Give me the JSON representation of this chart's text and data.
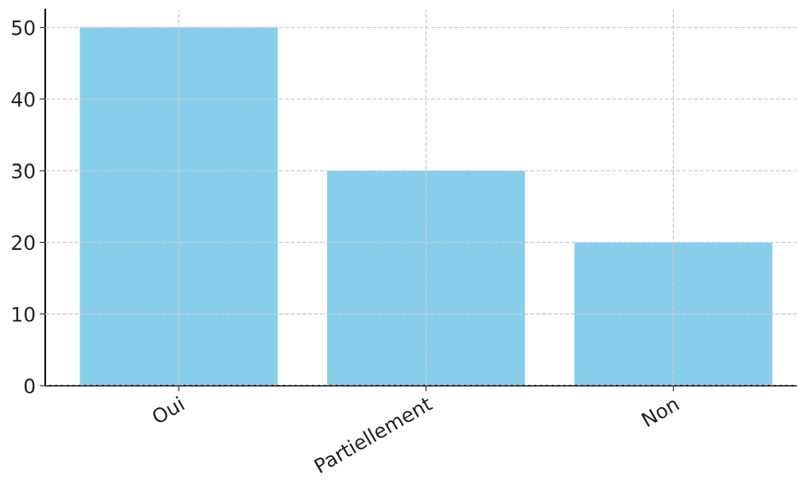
{
  "chart_data": {
    "type": "bar",
    "categories": [
      "Oui",
      "Partiellement",
      "Non"
    ],
    "values": [
      50,
      30,
      20
    ],
    "color": "#87ceeb",
    "ylim": [
      0,
      52.5
    ],
    "yticks": [
      0,
      10,
      20,
      30,
      40,
      50
    ],
    "grid": true
  }
}
